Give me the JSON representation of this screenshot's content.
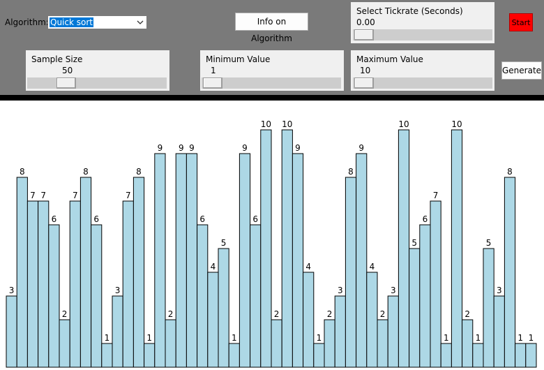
{
  "toolbar": {
    "algorithm_label": "Algorithm:",
    "algorithm_selected": "Quick sort",
    "info_button_label": "Info on Algorithm",
    "tickrate_title": "Select Tickrate (Seconds)",
    "tickrate_value": "0.00",
    "start_label": "Start",
    "sample_title": "Sample Size",
    "sample_value": "50",
    "min_title": "Minimum Value",
    "min_value": "1",
    "max_title": "Maximum Value",
    "max_value": "10",
    "generate_label": "Generate"
  },
  "colors": {
    "bar_fill": "#add8e6",
    "start_button": "#ff0000",
    "toolbar_bg": "#7a7a7a"
  },
  "chart_data": {
    "type": "bar",
    "ylim": [
      0,
      10
    ],
    "values": [
      3,
      8,
      7,
      7,
      6,
      2,
      7,
      8,
      6,
      1,
      3,
      7,
      8,
      1,
      9,
      2,
      9,
      9,
      6,
      4,
      5,
      1,
      9,
      6,
      10,
      2,
      10,
      9,
      4,
      1,
      2,
      3,
      8,
      9,
      4,
      2,
      3,
      10,
      5,
      6,
      7,
      1,
      10,
      2,
      1,
      5,
      3,
      8,
      1,
      1
    ]
  }
}
